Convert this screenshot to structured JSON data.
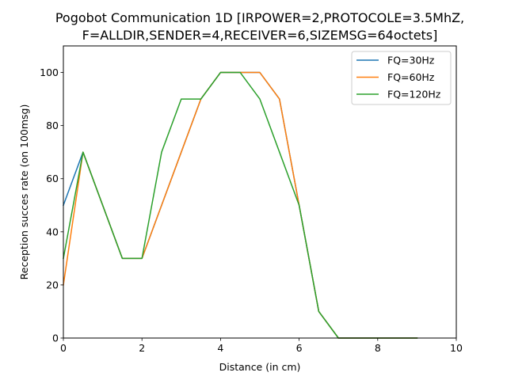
{
  "chart_data": {
    "type": "line",
    "title_lines": [
      "Pogobot Communication 1D [IRPOWER=2,PROTOCOLE=3.5MhZ,",
      "F=ALLDIR,SENDER=4,RECEIVER=6,SIZEMSG=64octets]"
    ],
    "xlabel": "Distance (in cm)",
    "ylabel": "Reception succes rate (on 100msg)",
    "xlim": [
      0,
      10
    ],
    "ylim": [
      0,
      110
    ],
    "xticks": [
      0,
      2,
      4,
      6,
      8,
      10
    ],
    "yticks": [
      0,
      20,
      40,
      60,
      80,
      100
    ],
    "grid": false,
    "legend_position": "top-right",
    "x": [
      0,
      0.5,
      1,
      1.5,
      2,
      2.5,
      3,
      3.5,
      4,
      4.5,
      5,
      5.5,
      6,
      6.5,
      7,
      7.5,
      8,
      8.5,
      9
    ],
    "series": [
      {
        "name": "FQ=30Hz",
        "color": "#1f77b4",
        "values": [
          50,
          70,
          50,
          30,
          30,
          50,
          70,
          90,
          100,
          100,
          100,
          90,
          50,
          10,
          0,
          0,
          0,
          0,
          0
        ]
      },
      {
        "name": "FQ=60Hz",
        "color": "#ff7f0e",
        "values": [
          20,
          70,
          50,
          30,
          30,
          50,
          70,
          90,
          100,
          100,
          100,
          90,
          50,
          10,
          0,
          0,
          0,
          0,
          0
        ]
      },
      {
        "name": "FQ=120Hz",
        "color": "#2ca02c",
        "values": [
          30,
          70,
          50,
          30,
          30,
          70,
          90,
          90,
          100,
          100,
          90,
          70,
          50,
          10,
          0,
          0,
          0,
          0,
          0
        ]
      }
    ]
  }
}
